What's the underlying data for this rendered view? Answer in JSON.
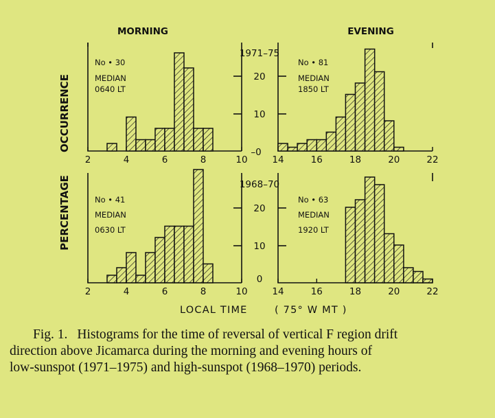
{
  "figure": {
    "columns": {
      "left": "MORNING",
      "right": "EVENING"
    },
    "ylabel_left": "OCCURRENCE",
    "ylabel_right": "PERCENTAGE",
    "xlabel": "LOCAL TIME",
    "xlabel_unit": "( 75° W MT )",
    "y_ticks": [
      "20",
      "10",
      "–0"
    ],
    "y_ticks_bottom": [
      "20",
      "10",
      "0"
    ]
  },
  "chart_data": [
    {
      "type": "bar",
      "panel": "top-left",
      "period": "1971–75",
      "stats": {
        "n": "No • 30",
        "median_label": "MEDIAN",
        "median_value": "0640 LT"
      },
      "x_ticks": [
        "2",
        "4",
        "6",
        "8",
        "10"
      ],
      "xlim": [
        2,
        10
      ],
      "ylim": [
        0,
        30
      ],
      "bin_width_h": 0.5,
      "bins": [
        {
          "x": 3.0,
          "y": 2
        },
        {
          "x": 3.5,
          "y": 0
        },
        {
          "x": 4.0,
          "y": 9
        },
        {
          "x": 4.5,
          "y": 3
        },
        {
          "x": 5.0,
          "y": 3
        },
        {
          "x": 5.5,
          "y": 6
        },
        {
          "x": 6.0,
          "y": 6
        },
        {
          "x": 6.5,
          "y": 26
        },
        {
          "x": 7.0,
          "y": 22
        },
        {
          "x": 7.5,
          "y": 6
        },
        {
          "x": 8.0,
          "y": 6
        }
      ]
    },
    {
      "type": "bar",
      "panel": "top-right",
      "period": "1971–75",
      "stats": {
        "n": "No • 81",
        "median_label": "MEDIAN",
        "median_value": "1850 LT"
      },
      "x_ticks": [
        "14",
        "16",
        "18",
        "20",
        "22"
      ],
      "xlim": [
        14,
        22
      ],
      "ylim": [
        0,
        30
      ],
      "bin_width_h": 0.5,
      "bins": [
        {
          "x": 14.0,
          "y": 2
        },
        {
          "x": 14.5,
          "y": 1
        },
        {
          "x": 15.0,
          "y": 2
        },
        {
          "x": 15.5,
          "y": 3
        },
        {
          "x": 16.0,
          "y": 3
        },
        {
          "x": 16.5,
          "y": 5
        },
        {
          "x": 17.0,
          "y": 9
        },
        {
          "x": 17.5,
          "y": 15
        },
        {
          "x": 18.0,
          "y": 18
        },
        {
          "x": 18.5,
          "y": 27
        },
        {
          "x": 19.0,
          "y": 21
        },
        {
          "x": 19.5,
          "y": 8
        },
        {
          "x": 20.0,
          "y": 1
        }
      ]
    },
    {
      "type": "bar",
      "panel": "bottom-left",
      "period": "1968–70",
      "stats": {
        "n": "No • 41",
        "median_label": "MEDIAN",
        "median_value": "0630 LT"
      },
      "x_ticks": [
        "2",
        "4",
        "6",
        "8",
        "10"
      ],
      "xlim": [
        2,
        10
      ],
      "ylim": [
        0,
        30
      ],
      "bin_width_h": 0.5,
      "bins": [
        {
          "x": 3.0,
          "y": 2
        },
        {
          "x": 3.5,
          "y": 4
        },
        {
          "x": 4.0,
          "y": 8
        },
        {
          "x": 4.5,
          "y": 2
        },
        {
          "x": 5.0,
          "y": 8
        },
        {
          "x": 5.5,
          "y": 12
        },
        {
          "x": 6.0,
          "y": 15
        },
        {
          "x": 6.5,
          "y": 15
        },
        {
          "x": 7.0,
          "y": 15
        },
        {
          "x": 7.5,
          "y": 30
        },
        {
          "x": 8.0,
          "y": 5
        }
      ]
    },
    {
      "type": "bar",
      "panel": "bottom-right",
      "period": "1968–70",
      "stats": {
        "n": "No • 63",
        "median_label": "MEDIAN",
        "median_value": "1920 LT"
      },
      "x_ticks": [
        "14",
        "16",
        "18",
        "20",
        "22"
      ],
      "xlim": [
        14,
        22
      ],
      "ylim": [
        0,
        30
      ],
      "bin_width_h": 0.5,
      "bins": [
        {
          "x": 17.5,
          "y": 20
        },
        {
          "x": 18.0,
          "y": 22
        },
        {
          "x": 18.5,
          "y": 28
        },
        {
          "x": 19.0,
          "y": 26
        },
        {
          "x": 19.5,
          "y": 13
        },
        {
          "x": 20.0,
          "y": 10
        },
        {
          "x": 20.5,
          "y": 4
        },
        {
          "x": 21.0,
          "y": 3
        },
        {
          "x": 21.5,
          "y": 1
        }
      ]
    }
  ],
  "caption": {
    "fig_no": "Fig. 1.",
    "line1": "Histograms for the time of reversal of vertical F region drift",
    "line2": "direction above Jicamarca during the morning and evening hours of",
    "line3": "low-sunspot (1971–1975) and high-sunspot (1968–1970) periods."
  }
}
